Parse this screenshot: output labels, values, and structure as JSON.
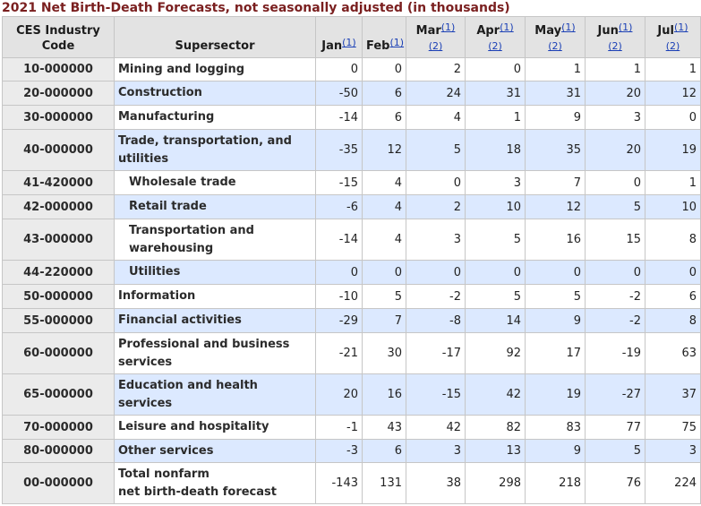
{
  "title": "2021 Net Birth-Death Forecasts, not seasonally adjusted (in thousands)",
  "headers": {
    "code": "CES Industry Code",
    "supersector": "Supersector",
    "months": [
      {
        "label": "Jan",
        "fn1": "(1)",
        "fn2": ""
      },
      {
        "label": "Feb",
        "fn1": "(1)",
        "fn2": ""
      },
      {
        "label": "Mar",
        "fn1": "(1)",
        "fn2": "(2)"
      },
      {
        "label": "Apr",
        "fn1": "(1)",
        "fn2": "(2)"
      },
      {
        "label": "May",
        "fn1": "(1)",
        "fn2": "(2)"
      },
      {
        "label": "Jun",
        "fn1": "(1)",
        "fn2": "(2)"
      },
      {
        "label": "Jul",
        "fn1": "(1)",
        "fn2": "(2)"
      }
    ]
  },
  "rows": [
    {
      "code": "10-000000",
      "name": "Mining and logging",
      "values": [
        "0",
        "0",
        "2",
        "0",
        "1",
        "1",
        "1"
      ]
    },
    {
      "code": "20-000000",
      "name": "Construction",
      "values": [
        "-50",
        "6",
        "24",
        "31",
        "31",
        "20",
        "12"
      ]
    },
    {
      "code": "30-000000",
      "name": "Manufacturing",
      "values": [
        "-14",
        "6",
        "4",
        "1",
        "9",
        "3",
        "0"
      ]
    },
    {
      "code": "40-000000",
      "name": "Trade, transportation, and utilities",
      "values": [
        "-35",
        "12",
        "5",
        "18",
        "35",
        "20",
        "19"
      ]
    },
    {
      "code": "41-420000",
      "name": "Wholesale trade",
      "values": [
        "-15",
        "4",
        "0",
        "3",
        "7",
        "0",
        "1"
      ]
    },
    {
      "code": "42-000000",
      "name": "Retail trade",
      "values": [
        "-6",
        "4",
        "2",
        "10",
        "12",
        "5",
        "10"
      ]
    },
    {
      "code": "43-000000",
      "name": "Transportation and warehousing",
      "values": [
        "-14",
        "4",
        "3",
        "5",
        "16",
        "15",
        "8"
      ]
    },
    {
      "code": "44-220000",
      "name": "Utilities",
      "values": [
        "0",
        "0",
        "0",
        "0",
        "0",
        "0",
        "0"
      ]
    },
    {
      "code": "50-000000",
      "name": "Information",
      "values": [
        "-10",
        "5",
        "-2",
        "5",
        "5",
        "-2",
        "6"
      ]
    },
    {
      "code": "55-000000",
      "name": "Financial activities",
      "values": [
        "-29",
        "7",
        "-8",
        "14",
        "9",
        "-2",
        "8"
      ]
    },
    {
      "code": "60-000000",
      "name": "Professional and business services",
      "values": [
        "-21",
        "30",
        "-17",
        "92",
        "17",
        "-19",
        "63"
      ]
    },
    {
      "code": "65-000000",
      "name": "Education and health services",
      "values": [
        "20",
        "16",
        "-15",
        "42",
        "19",
        "-27",
        "37"
      ]
    },
    {
      "code": "70-000000",
      "name": "Leisure and hospitality",
      "values": [
        "-1",
        "43",
        "42",
        "82",
        "83",
        "77",
        "75"
      ]
    },
    {
      "code": "80-000000",
      "name": "Other services",
      "values": [
        "-3",
        "6",
        "3",
        "13",
        "9",
        "5",
        "3"
      ]
    },
    {
      "code": "00-000000",
      "name": "Total nonfarm net birth-death forecast",
      "name_line1": "Total nonfarm",
      "name_line2": "net birth-death forecast",
      "values": [
        "-143",
        "131",
        "38",
        "298",
        "218",
        "76",
        "224"
      ]
    }
  ]
}
